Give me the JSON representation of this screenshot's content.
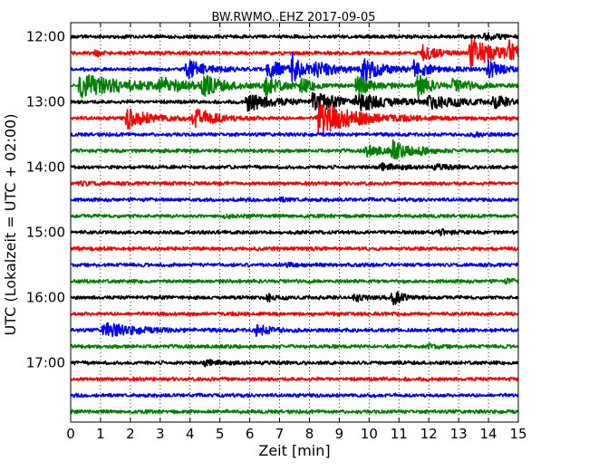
{
  "chart_data": {
    "type": "line",
    "title": "BW.RWMO..EHZ 2017-09-05",
    "xlabel": "Zeit  [min]",
    "ylabel": "UTC (Lokalzeit = UTC + 02:00)",
    "xlim": [
      0,
      15
    ],
    "x_ticks": [
      "0",
      "1",
      "2",
      "3",
      "4",
      "5",
      "6",
      "7",
      "8",
      "9",
      "10",
      "11",
      "12",
      "13",
      "14",
      "15"
    ],
    "y_ticks": [
      "12:00",
      "13:00",
      "14:00",
      "15:00",
      "16:00",
      "17:00"
    ],
    "grid": "vertical dotted",
    "colors": [
      "#000000",
      "#ff0000",
      "#0000ff",
      "#008000"
    ],
    "traces": [
      {
        "start": "12:00",
        "color": "#000000",
        "events": [
          {
            "t": 13.9,
            "amp": 0.35,
            "dur": 0.4
          }
        ]
      },
      {
        "start": "12:15",
        "color": "#ff0000",
        "events": [
          {
            "t": 0.8,
            "amp": 0.5,
            "dur": 0.15
          },
          {
            "t": 11.8,
            "amp": 0.9,
            "dur": 0.4
          },
          {
            "t": 13.4,
            "amp": 1.3,
            "dur": 0.9
          },
          {
            "t": 14.7,
            "amp": 0.8,
            "dur": 0.3
          }
        ]
      },
      {
        "start": "12:30",
        "color": "#0000ff",
        "events": [
          {
            "t": 3.9,
            "amp": 0.9,
            "dur": 0.6
          },
          {
            "t": 6.6,
            "amp": 1.0,
            "dur": 0.5
          },
          {
            "t": 7.4,
            "amp": 1.6,
            "dur": 0.3
          },
          {
            "t": 8.2,
            "amp": 0.7,
            "dur": 0.7
          },
          {
            "t": 9.8,
            "amp": 1.1,
            "dur": 0.6
          },
          {
            "t": 11.5,
            "amp": 0.7,
            "dur": 0.6
          },
          {
            "t": 14.0,
            "amp": 0.9,
            "dur": 0.4
          }
        ]
      },
      {
        "start": "12:45",
        "color": "#008000",
        "events": [
          {
            "t": 0.3,
            "amp": 1.1,
            "dur": 1.6
          },
          {
            "t": 3.0,
            "amp": 0.6,
            "dur": 0.8
          },
          {
            "t": 4.4,
            "amp": 0.9,
            "dur": 0.6
          },
          {
            "t": 6.5,
            "amp": 0.9,
            "dur": 0.5
          },
          {
            "t": 7.7,
            "amp": 0.6,
            "dur": 0.5
          },
          {
            "t": 9.6,
            "amp": 1.0,
            "dur": 0.5
          },
          {
            "t": 11.6,
            "amp": 1.3,
            "dur": 0.4
          },
          {
            "t": 12.8,
            "amp": 0.5,
            "dur": 0.8
          }
        ]
      },
      {
        "start": "13:00",
        "color": "#000000",
        "events": [
          {
            "t": 5.9,
            "amp": 0.9,
            "dur": 0.8
          },
          {
            "t": 8.1,
            "amp": 1.0,
            "dur": 0.7
          },
          {
            "t": 9.6,
            "amp": 0.8,
            "dur": 1.0
          },
          {
            "t": 12.0,
            "amp": 0.6,
            "dur": 1.0
          },
          {
            "t": 14.2,
            "amp": 0.6,
            "dur": 0.4
          }
        ]
      },
      {
        "start": "13:15",
        "color": "#ff0000",
        "events": [
          {
            "t": 1.9,
            "amp": 1.0,
            "dur": 0.7
          },
          {
            "t": 4.1,
            "amp": 1.0,
            "dur": 0.7
          },
          {
            "t": 8.3,
            "amp": 1.6,
            "dur": 1.2
          }
        ]
      },
      {
        "start": "13:30",
        "color": "#0000ff",
        "events": [
          {
            "t": 13.5,
            "amp": 0.2,
            "dur": 0.3
          }
        ]
      },
      {
        "start": "13:45",
        "color": "#008000",
        "events": [
          {
            "t": 9.9,
            "amp": 0.6,
            "dur": 0.5
          },
          {
            "t": 10.8,
            "amp": 0.8,
            "dur": 0.5
          },
          {
            "t": 11.6,
            "amp": 0.3,
            "dur": 0.4
          }
        ]
      },
      {
        "start": "14:00",
        "color": "#000000",
        "events": [
          {
            "t": 10.4,
            "amp": 0.3,
            "dur": 0.6
          },
          {
            "t": 12.2,
            "amp": 0.2,
            "dur": 0.5
          }
        ]
      },
      {
        "start": "14:15",
        "color": "#ff0000",
        "events": [
          {
            "t": 0.3,
            "amp": 0.15,
            "dur": 0.5
          }
        ]
      },
      {
        "start": "14:30",
        "color": "#0000ff",
        "events": [
          {
            "t": 7.0,
            "amp": 0.12,
            "dur": 0.5
          }
        ]
      },
      {
        "start": "14:45",
        "color": "#008000",
        "events": [
          {
            "t": 5.0,
            "amp": 0.12,
            "dur": 0.5
          }
        ]
      },
      {
        "start": "15:00",
        "color": "#000000",
        "events": [
          {
            "t": 12.4,
            "amp": 0.2,
            "dur": 0.4
          }
        ]
      },
      {
        "start": "15:15",
        "color": "#ff0000",
        "events": []
      },
      {
        "start": "15:30",
        "color": "#0000ff",
        "events": [
          {
            "t": 7.2,
            "amp": 0.15,
            "dur": 0.4
          }
        ]
      },
      {
        "start": "15:45",
        "color": "#008000",
        "events": [
          {
            "t": 14.6,
            "amp": 0.15,
            "dur": 0.3
          }
        ]
      },
      {
        "start": "16:00",
        "color": "#000000",
        "events": [
          {
            "t": 6.6,
            "amp": 0.4,
            "dur": 0.2
          },
          {
            "t": 9.5,
            "amp": 0.3,
            "dur": 0.4
          },
          {
            "t": 10.8,
            "amp": 0.7,
            "dur": 0.3
          }
        ]
      },
      {
        "start": "16:15",
        "color": "#ff0000",
        "events": []
      },
      {
        "start": "16:30",
        "color": "#0000ff",
        "events": [
          {
            "t": 1.1,
            "amp": 0.7,
            "dur": 1.0
          },
          {
            "t": 6.2,
            "amp": 0.5,
            "dur": 0.5
          }
        ]
      },
      {
        "start": "16:45",
        "color": "#008000",
        "events": [
          {
            "t": 12.0,
            "amp": 0.15,
            "dur": 0.4
          }
        ]
      },
      {
        "start": "17:00",
        "color": "#000000",
        "events": [
          {
            "t": 4.5,
            "amp": 0.25,
            "dur": 0.5
          }
        ]
      },
      {
        "start": "17:15",
        "color": "#ff0000",
        "events": []
      },
      {
        "start": "17:30",
        "color": "#0000ff",
        "events": []
      },
      {
        "start": "17:45",
        "color": "#008000",
        "events": []
      }
    ]
  }
}
